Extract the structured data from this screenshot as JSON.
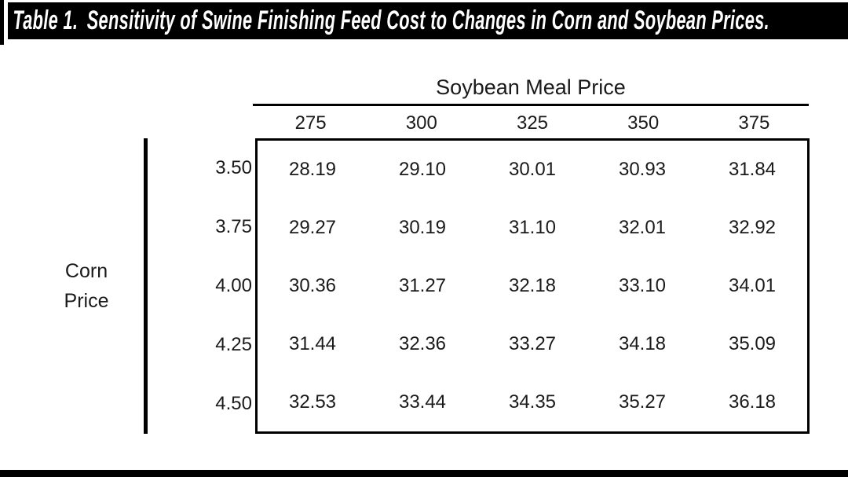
{
  "title_bar": {
    "label": "Table 1.",
    "title": "Sensitivity of Swine Finishing Feed Cost to Changes in Corn and Soybean Prices."
  },
  "table": {
    "col_group_label": "Soybean Meal Price",
    "row_group_label_line1": "Corn",
    "row_group_label_line2": "Price",
    "columns": [
      "275",
      "300",
      "325",
      "350",
      "375"
    ],
    "rows": [
      {
        "label": "3.50",
        "values": [
          "28.19",
          "29.10",
          "30.01",
          "30.93",
          "31.84"
        ]
      },
      {
        "label": "3.75",
        "values": [
          "29.27",
          "30.19",
          "31.10",
          "32.01",
          "32.92"
        ]
      },
      {
        "label": "4.00",
        "values": [
          "30.36",
          "31.27",
          "32.18",
          "33.10",
          "34.01"
        ]
      },
      {
        "label": "4.25",
        "values": [
          "31.44",
          "32.36",
          "33.27",
          "34.18",
          "35.09"
        ]
      },
      {
        "label": "4.50",
        "values": [
          "32.53",
          "33.44",
          "34.35",
          "35.27",
          "36.18"
        ]
      }
    ]
  },
  "colors": {
    "banner_bg": "#000000",
    "banner_text": "#ffffff",
    "body_text": "#1a1a1a",
    "rule": "#000000"
  }
}
